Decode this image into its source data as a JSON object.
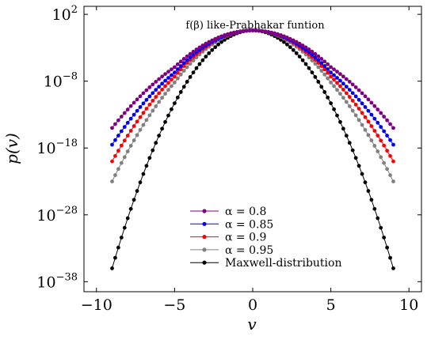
{
  "chart_data": {
    "type": "line",
    "title": "f(β) like-Prabhakar funtion",
    "xlabel": "v",
    "ylabel": "p(v)",
    "xlim": [
      -10.8,
      10.8
    ],
    "ylim_log10": [
      -39.5,
      3.2
    ],
    "y_scale": "log",
    "grid": false,
    "legend_position": "bottom-center",
    "x_ticks": [
      -10,
      -5,
      0,
      5,
      10
    ],
    "x_tick_labels": [
      "−10",
      "−5",
      "0",
      "5",
      "10"
    ],
    "y_ticks_log10": [
      2,
      -8,
      -18,
      -28,
      -38
    ],
    "y_tick_labels": [
      {
        "base": "10",
        "exp": "2"
      },
      {
        "base": "10",
        "exp": "−8"
      },
      {
        "base": "10",
        "exp": "−18"
      },
      {
        "base": "10",
        "exp": "−28"
      },
      {
        "base": "10",
        "exp": "−38"
      }
    ],
    "x_range": [
      -9,
      9
    ],
    "x_step": 0.2,
    "peak_log10": -0.4,
    "series": [
      {
        "name": "α = 0.8",
        "color": "#800080",
        "log10_at_abs_v": {
          "0": -0.4,
          "5": -5.9,
          "9": -15.0
        }
      },
      {
        "name": "α = 0.85",
        "color": "#0000ff",
        "log10_at_abs_v": {
          "0": -0.4,
          "5": -6.7,
          "9": -17.5
        }
      },
      {
        "name": "α = 0.9",
        "color": "#ff0000",
        "log10_at_abs_v": {
          "0": -0.4,
          "5": -7.3,
          "9": -20.0
        }
      },
      {
        "name": "α = 0.95",
        "color": "#808080",
        "log10_at_abs_v": {
          "0": -0.4,
          "5": -8.2,
          "9": -23.0
        }
      },
      {
        "name": "Maxwell-distribution",
        "color": "#000000",
        "log10_at_abs_v": {
          "0": -0.4,
          "5": -11.3,
          "9": -36.0
        }
      }
    ]
  }
}
